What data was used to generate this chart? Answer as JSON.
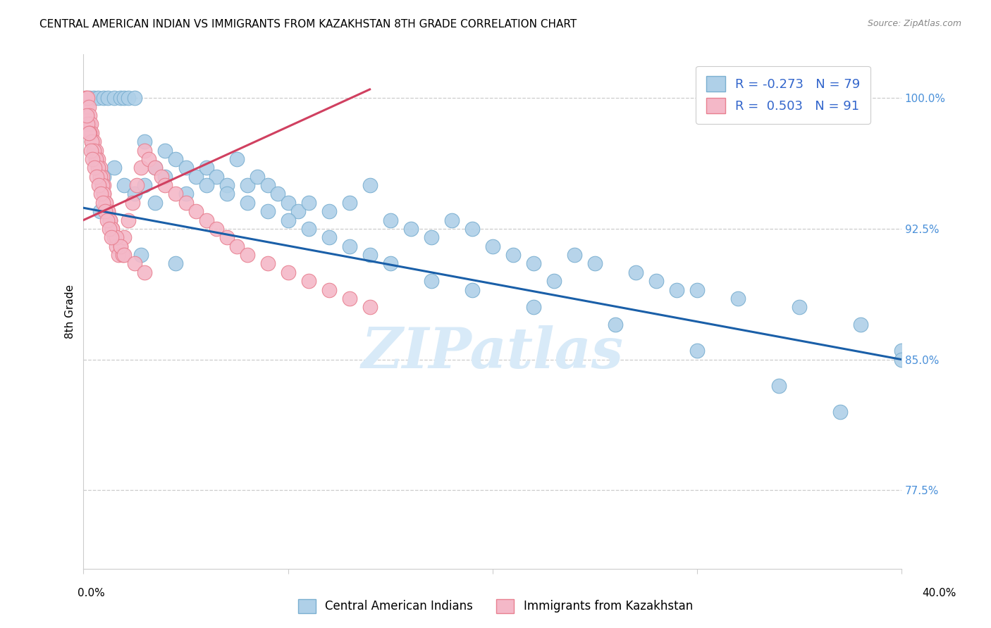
{
  "title": "CENTRAL AMERICAN INDIAN VS IMMIGRANTS FROM KAZAKHSTAN 8TH GRADE CORRELATION CHART",
  "source": "Source: ZipAtlas.com",
  "ylabel": "8th Grade",
  "ytick_labels": [
    "77.5%",
    "85.0%",
    "92.5%",
    "100.0%"
  ],
  "ytick_values": [
    77.5,
    85.0,
    92.5,
    100.0
  ],
  "xlim": [
    0.0,
    40.0
  ],
  "ylim": [
    73.0,
    102.5
  ],
  "legend_R1": "R = -0.273",
  "legend_N1": "N = 79",
  "legend_R2": "R =  0.503",
  "legend_N2": "N = 91",
  "legend_label1": "Central American Indians",
  "legend_label2": "Immigrants from Kazakhstan",
  "blue_color": "#afd0e8",
  "pink_color": "#f4b8c8",
  "blue_edge": "#7aafd0",
  "pink_edge": "#e88090",
  "trend_blue": "#1a5fa8",
  "trend_pink": "#d04060",
  "blue_trend_x0": 0.0,
  "blue_trend_y0": 93.7,
  "blue_trend_x1": 40.0,
  "blue_trend_y1": 85.0,
  "pink_trend_x0": 0.0,
  "pink_trend_y0": 93.0,
  "pink_trend_x1": 14.0,
  "pink_trend_y1": 100.5,
  "blue_x": [
    0.3,
    0.5,
    0.7,
    1.0,
    1.2,
    1.5,
    1.8,
    2.0,
    2.2,
    2.5,
    3.0,
    3.5,
    4.0,
    4.5,
    5.0,
    5.5,
    6.0,
    6.5,
    7.0,
    7.5,
    8.0,
    8.5,
    9.0,
    9.5,
    10.0,
    10.5,
    11.0,
    12.0,
    13.0,
    14.0,
    15.0,
    16.0,
    17.0,
    18.0,
    19.0,
    20.0,
    21.0,
    22.0,
    23.0,
    24.0,
    25.0,
    27.0,
    28.0,
    29.0,
    30.0,
    32.0,
    35.0,
    38.0,
    40.0,
    1.0,
    1.5,
    2.0,
    2.5,
    3.0,
    3.5,
    4.0,
    5.0,
    6.0,
    7.0,
    8.0,
    9.0,
    10.0,
    11.0,
    12.0,
    13.0,
    14.0,
    15.0,
    17.0,
    19.0,
    22.0,
    26.0,
    30.0,
    34.0,
    37.0,
    40.0,
    0.8,
    1.3,
    2.8,
    4.5
  ],
  "blue_y": [
    100.0,
    100.0,
    100.0,
    100.0,
    100.0,
    100.0,
    100.0,
    100.0,
    100.0,
    100.0,
    97.5,
    96.0,
    97.0,
    96.5,
    96.0,
    95.5,
    96.0,
    95.5,
    95.0,
    96.5,
    95.0,
    95.5,
    95.0,
    94.5,
    94.0,
    93.5,
    94.0,
    93.5,
    94.0,
    95.0,
    93.0,
    92.5,
    92.0,
    93.0,
    92.5,
    91.5,
    91.0,
    90.5,
    89.5,
    91.0,
    90.5,
    90.0,
    89.5,
    89.0,
    89.0,
    88.5,
    88.0,
    87.0,
    85.5,
    95.5,
    96.0,
    95.0,
    94.5,
    95.0,
    94.0,
    95.5,
    94.5,
    95.0,
    94.5,
    94.0,
    93.5,
    93.0,
    92.5,
    92.0,
    91.5,
    91.0,
    90.5,
    89.5,
    89.0,
    88.0,
    87.0,
    85.5,
    83.5,
    82.0,
    85.0,
    93.5,
    93.0,
    91.0,
    90.5
  ],
  "pink_x": [
    0.1,
    0.1,
    0.1,
    0.15,
    0.15,
    0.2,
    0.2,
    0.25,
    0.25,
    0.3,
    0.3,
    0.35,
    0.35,
    0.4,
    0.4,
    0.5,
    0.5,
    0.6,
    0.6,
    0.7,
    0.7,
    0.8,
    0.8,
    0.9,
    0.9,
    1.0,
    1.0,
    1.1,
    1.2,
    1.3,
    1.4,
    1.5,
    1.6,
    1.7,
    1.8,
    1.9,
    2.0,
    2.2,
    2.4,
    2.6,
    2.8,
    3.0,
    3.2,
    3.5,
    3.8,
    4.0,
    4.5,
    5.0,
    5.5,
    6.0,
    6.5,
    7.0,
    7.5,
    8.0,
    9.0,
    10.0,
    11.0,
    12.0,
    13.0,
    14.0,
    0.2,
    0.3,
    0.4,
    0.5,
    0.6,
    0.7,
    0.8,
    0.9,
    1.0,
    1.1,
    1.2,
    1.3,
    1.4,
    1.6,
    1.8,
    2.0,
    2.5,
    3.0,
    0.15,
    0.25,
    0.35,
    0.45,
    0.55,
    0.65,
    0.75,
    0.85,
    0.95,
    1.05,
    1.15,
    1.25,
    1.35
  ],
  "pink_y": [
    100.0,
    99.5,
    99.0,
    100.0,
    99.5,
    100.0,
    99.0,
    99.5,
    98.5,
    99.0,
    98.5,
    98.0,
    98.5,
    97.5,
    98.0,
    97.0,
    97.5,
    96.5,
    97.0,
    96.0,
    96.5,
    95.5,
    96.0,
    95.0,
    95.5,
    94.5,
    95.0,
    94.0,
    93.5,
    93.0,
    92.5,
    92.0,
    91.5,
    91.0,
    91.5,
    91.0,
    92.0,
    93.0,
    94.0,
    95.0,
    96.0,
    97.0,
    96.5,
    96.0,
    95.5,
    95.0,
    94.5,
    94.0,
    93.5,
    93.0,
    92.5,
    92.0,
    91.5,
    91.0,
    90.5,
    90.0,
    89.5,
    89.0,
    88.5,
    88.0,
    98.5,
    98.0,
    97.5,
    97.0,
    96.5,
    96.0,
    95.5,
    95.0,
    94.5,
    94.0,
    93.5,
    93.0,
    92.5,
    92.0,
    91.5,
    91.0,
    90.5,
    90.0,
    99.0,
    98.0,
    97.0,
    96.5,
    96.0,
    95.5,
    95.0,
    94.5,
    94.0,
    93.5,
    93.0,
    92.5,
    92.0
  ],
  "watermark": "ZIPatlas",
  "watermark_color": "#d8eaf8"
}
